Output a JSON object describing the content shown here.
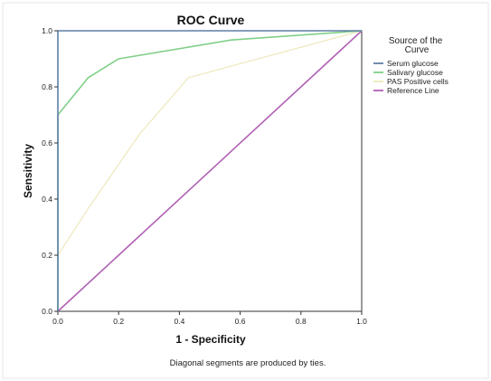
{
  "chart_data": {
    "type": "line",
    "title": "ROC Curve",
    "xlabel": "1 - Specificity",
    "ylabel": "Sensitivity",
    "xlim": [
      0,
      1
    ],
    "ylim": [
      0,
      1
    ],
    "x_ticks": [
      "0.0",
      "0.2",
      "0.4",
      "0.6",
      "0.8",
      "1.0"
    ],
    "y_ticks": [
      "0.0",
      "0.2",
      "0.4",
      "0.6",
      "0.8",
      "1.0"
    ],
    "grid": false,
    "legend": {
      "title": "Source of the Curve",
      "placement": "right"
    },
    "series": [
      {
        "name": "Serum glucose",
        "color": "#5f7fa7",
        "x": [
          0,
          0,
          1
        ],
        "y": [
          0,
          1,
          1
        ]
      },
      {
        "name": "Salivary glucose",
        "color": "#7fcf86",
        "x": [
          0,
          0,
          0.1,
          0.2,
          0.57,
          1
        ],
        "y": [
          0,
          0.7,
          0.833,
          0.9,
          0.967,
          1
        ]
      },
      {
        "name": "PAS Positive cells",
        "color": "#eee8bc",
        "x": [
          0,
          0,
          0.1,
          0.27,
          0.43,
          1
        ],
        "y": [
          0,
          0.2,
          0.367,
          0.633,
          0.833,
          1
        ]
      },
      {
        "name": "Reference Line",
        "color": "#b060b4",
        "x": [
          0,
          1
        ],
        "y": [
          0,
          1
        ]
      }
    ],
    "footnote": "Diagonal segments are produced by ties."
  }
}
